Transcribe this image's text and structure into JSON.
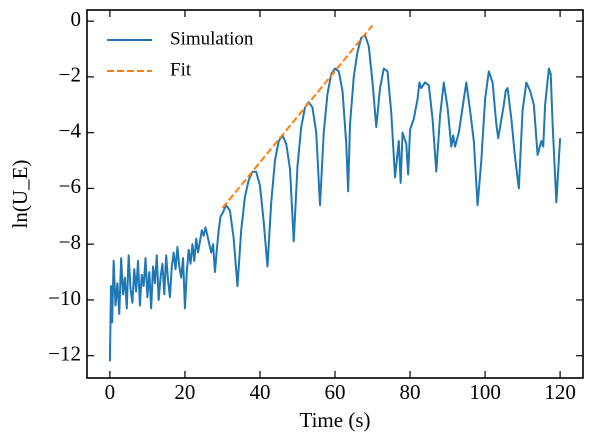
{
  "chart_data": {
    "type": "line",
    "xlabel": "Time (s)",
    "ylabel": "ln(U_E)",
    "xlim": [
      -6.1,
      126.1
    ],
    "ylim": [
      -12.8,
      0.4
    ],
    "xticks": [
      0,
      20,
      40,
      60,
      80,
      100,
      120
    ],
    "yticks": [
      0,
      {
        "value": -2,
        "label": "−2"
      },
      {
        "value": -4,
        "label": "−4"
      },
      {
        "value": -6,
        "label": "−6"
      },
      {
        "value": -8,
        "label": "−8"
      },
      {
        "value": -10,
        "label": "−10"
      },
      {
        "value": -12,
        "label": "−12"
      }
    ],
    "legend": "upper left",
    "series": [
      {
        "name": "Simulation",
        "color": "#1f77b4",
        "linestyle": "solid",
        "x": [
          0,
          0.3,
          0.6,
          1,
          1.5,
          2,
          2.5,
          3,
          3.5,
          4,
          4.5,
          5,
          5.5,
          6,
          6.5,
          7,
          7.5,
          8,
          8.5,
          9,
          9.5,
          10,
          10.5,
          11,
          11.5,
          12,
          12.5,
          13,
          13.5,
          14,
          14.5,
          15,
          15.5,
          16,
          16.5,
          17,
          17.5,
          18,
          18.5,
          19,
          19.5,
          20,
          20.5,
          21,
          21.5,
          22,
          22.5,
          23,
          23.5,
          24,
          24.5,
          25,
          25.5,
          26,
          27,
          27.5,
          28,
          28.5,
          29,
          29.5,
          30,
          31,
          32,
          33,
          34,
          35,
          36,
          37,
          38,
          39,
          40,
          41,
          42,
          43,
          44,
          45,
          46,
          47,
          48,
          49,
          50,
          51,
          52,
          53,
          54,
          55,
          56,
          57,
          58,
          59,
          60,
          61,
          62,
          63,
          63.5,
          64,
          65,
          66,
          67,
          68,
          69,
          70,
          71,
          72,
          73,
          74,
          75,
          76,
          77,
          77.5,
          78,
          79,
          79.5,
          80,
          81,
          82,
          82.5,
          83,
          84,
          85,
          86,
          87,
          88,
          89,
          90,
          91,
          91.5,
          92,
          93,
          94,
          95,
          96,
          97,
          98,
          99,
          100,
          101,
          102,
          103,
          103.5,
          104,
          105,
          105.5,
          106,
          107,
          108,
          109,
          110,
          111,
          112,
          113,
          114,
          115,
          115.5,
          116,
          117,
          117.5,
          118,
          119,
          120
        ],
        "values": [
          -12.2,
          -9.5,
          -10.8,
          -8.6,
          -10.2,
          -9.4,
          -10.5,
          -8.5,
          -9.8,
          -9.2,
          -10.3,
          -8.4,
          -9.6,
          -10.1,
          -8.9,
          -9.7,
          -8.6,
          -10.2,
          -9.1,
          -9.5,
          -8.5,
          -9.9,
          -9.0,
          -10.3,
          -8.8,
          -9.4,
          -8.4,
          -10.0,
          -9.2,
          -8.7,
          -9.8,
          -8.4,
          -9.3,
          -9.9,
          -8.8,
          -8.3,
          -8.9,
          -8.1,
          -8.8,
          -9.2,
          -8.5,
          -10.3,
          -9.0,
          -8.2,
          -8.7,
          -8.0,
          -8.6,
          -7.8,
          -8.3,
          -7.9,
          -7.5,
          -7.7,
          -7.4,
          -7.7,
          -8.3,
          -8.0,
          -9.0,
          -8.2,
          -7.5,
          -7.0,
          -6.9,
          -6.6,
          -6.8,
          -7.8,
          -9.5,
          -7.5,
          -6.3,
          -5.7,
          -5.4,
          -5.4,
          -5.9,
          -7.2,
          -8.8,
          -6.5,
          -5.0,
          -4.3,
          -4.1,
          -4.4,
          -5.3,
          -7.9,
          -5.2,
          -3.8,
          -3.1,
          -2.9,
          -3.1,
          -4.0,
          -6.6,
          -4.0,
          -2.6,
          -1.9,
          -1.7,
          -1.8,
          -2.5,
          -4.4,
          -6.1,
          -3.7,
          -2.0,
          -1.1,
          -0.6,
          -0.5,
          -0.9,
          -2.2,
          -3.8,
          -2.4,
          -1.7,
          -1.8,
          -3.3,
          -5.6,
          -4.3,
          -5.8,
          -4.0,
          -4.4,
          -5.5,
          -3.9,
          -3.5,
          -2.8,
          -2.2,
          -2.4,
          -2.2,
          -2.3,
          -3.5,
          -5.4,
          -3.4,
          -2.2,
          -3.1,
          -4.5,
          -4.1,
          -4.5,
          -4.0,
          -3.1,
          -2.2,
          -3.2,
          -4.3,
          -6.6,
          -5.0,
          -2.8,
          -1.8,
          -2.2,
          -3.7,
          -4.2,
          -3.8,
          -3.0,
          -2.5,
          -2.4,
          -3.5,
          -4.9,
          -6.0,
          -3.2,
          -2.2,
          -2.5,
          -3.0,
          -4.8,
          -4.3,
          -4.5,
          -3.0,
          -1.7,
          -1.9,
          -3.7,
          -6.5,
          -4.2
        ]
      },
      {
        "name": "Fit",
        "color": "#ff7f0e",
        "linestyle": "dashed",
        "x": [
          30,
          70
        ],
        "values": [
          -6.7,
          -0.15
        ]
      }
    ]
  }
}
